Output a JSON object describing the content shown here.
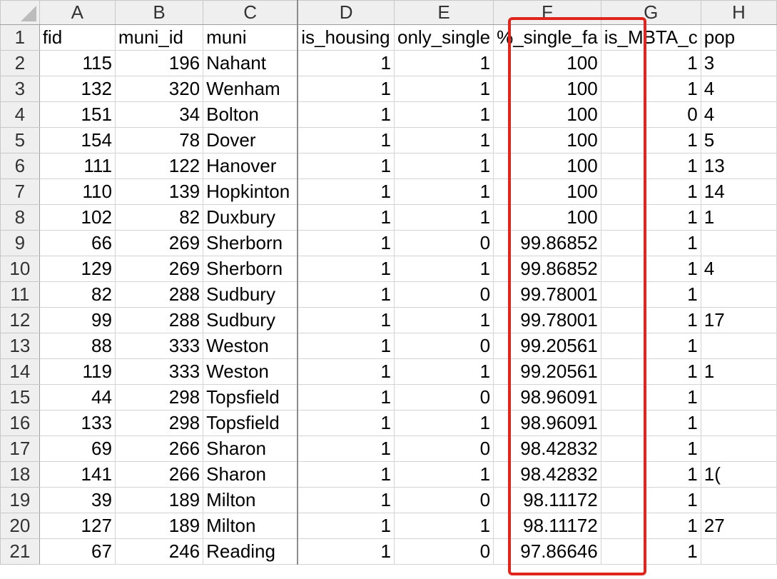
{
  "columns": [
    "A",
    "B",
    "C",
    "D",
    "E",
    "F",
    "G",
    "H"
  ],
  "header_row": {
    "number": "1",
    "cells": [
      "fid",
      "muni_id",
      "muni",
      "is_housing",
      "only_single",
      "%_single_fa",
      "is_MBTA_c",
      "pop"
    ]
  },
  "rows": [
    {
      "n": "2",
      "a": "115",
      "b": "196",
      "c": "Nahant",
      "d": "1",
      "e": "1",
      "f": "100",
      "g": "1",
      "h": "3"
    },
    {
      "n": "3",
      "a": "132",
      "b": "320",
      "c": "Wenham",
      "d": "1",
      "e": "1",
      "f": "100",
      "g": "1",
      "h": "4"
    },
    {
      "n": "4",
      "a": "151",
      "b": "34",
      "c": "Bolton",
      "d": "1",
      "e": "1",
      "f": "100",
      "g": "0",
      "h": "4"
    },
    {
      "n": "5",
      "a": "154",
      "b": "78",
      "c": "Dover",
      "d": "1",
      "e": "1",
      "f": "100",
      "g": "1",
      "h": "5"
    },
    {
      "n": "6",
      "a": "111",
      "b": "122",
      "c": "Hanover",
      "d": "1",
      "e": "1",
      "f": "100",
      "g": "1",
      "h": "13"
    },
    {
      "n": "7",
      "a": "110",
      "b": "139",
      "c": "Hopkinton",
      "d": "1",
      "e": "1",
      "f": "100",
      "g": "1",
      "h": "14"
    },
    {
      "n": "8",
      "a": "102",
      "b": "82",
      "c": "Duxbury",
      "d": "1",
      "e": "1",
      "f": "100",
      "g": "1",
      "h": "1"
    },
    {
      "n": "9",
      "a": "66",
      "b": "269",
      "c": "Sherborn",
      "d": "1",
      "e": "0",
      "f": "99.86852",
      "g": "1",
      "h": ""
    },
    {
      "n": "10",
      "a": "129",
      "b": "269",
      "c": "Sherborn",
      "d": "1",
      "e": "1",
      "f": "99.86852",
      "g": "1",
      "h": "4"
    },
    {
      "n": "11",
      "a": "82",
      "b": "288",
      "c": "Sudbury",
      "d": "1",
      "e": "0",
      "f": "99.78001",
      "g": "1",
      "h": ""
    },
    {
      "n": "12",
      "a": "99",
      "b": "288",
      "c": "Sudbury",
      "d": "1",
      "e": "1",
      "f": "99.78001",
      "g": "1",
      "h": "17"
    },
    {
      "n": "13",
      "a": "88",
      "b": "333",
      "c": "Weston",
      "d": "1",
      "e": "0",
      "f": "99.20561",
      "g": "1",
      "h": ""
    },
    {
      "n": "14",
      "a": "119",
      "b": "333",
      "c": "Weston",
      "d": "1",
      "e": "1",
      "f": "99.20561",
      "g": "1",
      "h": "1"
    },
    {
      "n": "15",
      "a": "44",
      "b": "298",
      "c": "Topsfield",
      "d": "1",
      "e": "0",
      "f": "98.96091",
      "g": "1",
      "h": ""
    },
    {
      "n": "16",
      "a": "133",
      "b": "298",
      "c": "Topsfield",
      "d": "1",
      "e": "1",
      "f": "98.96091",
      "g": "1",
      "h": ""
    },
    {
      "n": "17",
      "a": "69",
      "b": "266",
      "c": "Sharon",
      "d": "1",
      "e": "0",
      "f": "98.42832",
      "g": "1",
      "h": ""
    },
    {
      "n": "18",
      "a": "141",
      "b": "266",
      "c": "Sharon",
      "d": "1",
      "e": "1",
      "f": "98.42832",
      "g": "1",
      "h": "1("
    },
    {
      "n": "19",
      "a": "39",
      "b": "189",
      "c": "Milton",
      "d": "1",
      "e": "0",
      "f": "98.11172",
      "g": "1",
      "h": ""
    },
    {
      "n": "20",
      "a": "127",
      "b": "189",
      "c": "Milton",
      "d": "1",
      "e": "1",
      "f": "98.11172",
      "g": "1",
      "h": "27"
    },
    {
      "n": "21",
      "a": "67",
      "b": "246",
      "c": "Reading",
      "d": "1",
      "e": "0",
      "f": "97.86646",
      "g": "1",
      "h": ""
    }
  ],
  "highlight": {
    "color": "#e0251c",
    "column": "F"
  },
  "colors": {
    "header_bg": "#efefef",
    "grid": "#d4d4d4"
  }
}
